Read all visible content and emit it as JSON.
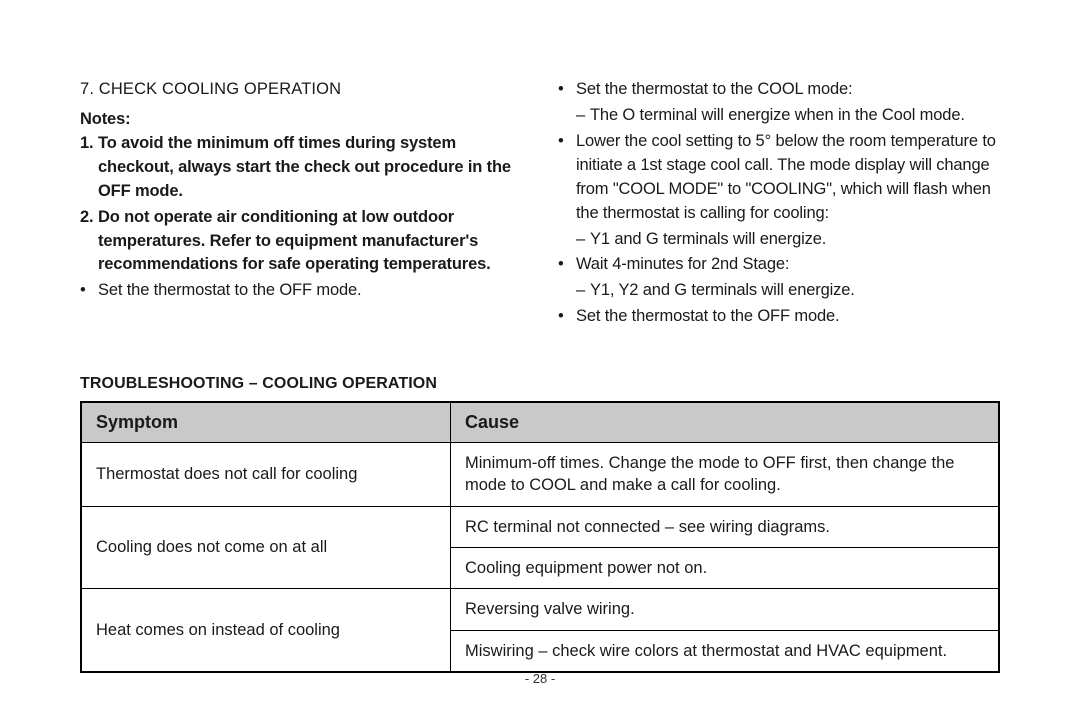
{
  "left": {
    "heading": "7. CHECK COOLING OPERATION",
    "notes_label": "Notes:",
    "note1_num": "1.",
    "note1": "To avoid the minimum off times during system checkout, always start the check out procedure in the OFF mode.",
    "note2_num": "2.",
    "note2": "Do not operate air conditioning at low outdoor temperatures. Refer to equipment manufacturer's recommendations for safe operating temperatures.",
    "b1": "Set the thermostat to the OFF mode."
  },
  "right": {
    "b1": "Set the thermostat to the COOL mode:",
    "b1_s1": "The O terminal will energize when in the Cool mode.",
    "b2": "Lower the cool setting to 5° below the room temperature to initiate a 1st stage cool call. The mode display will change from \"COOL MODE\" to \"COOLING\", which will flash when the thermostat is calling for cooling:",
    "b2_s1": "Y1 and G terminals will energize.",
    "b3": "Wait 4-minutes for 2nd Stage:",
    "b3_s1": "Y1, Y2 and G terminals will energize.",
    "b4": "Set the thermostat to the OFF mode."
  },
  "ts": {
    "title": "TROUBLESHOOTING – COOLING OPERATION",
    "h_symptom": "Symptom",
    "h_cause": "Cause",
    "r1_sym": "Thermostat does not call for cooling",
    "r1_cause": "Minimum-off times. Change the mode to OFF first, then change the mode to COOL and make a call for cooling.",
    "r2_sym": "Cooling does not come on at all",
    "r2_c1": "RC terminal not connected – see wiring diagrams.",
    "r2_c2": "Cooling equipment power not on.",
    "r3_sym": "Heat comes on instead of cooling",
    "r3_c1": "Reversing valve wiring.",
    "r3_c2": "Miswiring – check wire colors at thermostat and HVAC equipment."
  },
  "page_number": "- 28 -",
  "glyph": {
    "bullet": "•",
    "dash": "–"
  }
}
